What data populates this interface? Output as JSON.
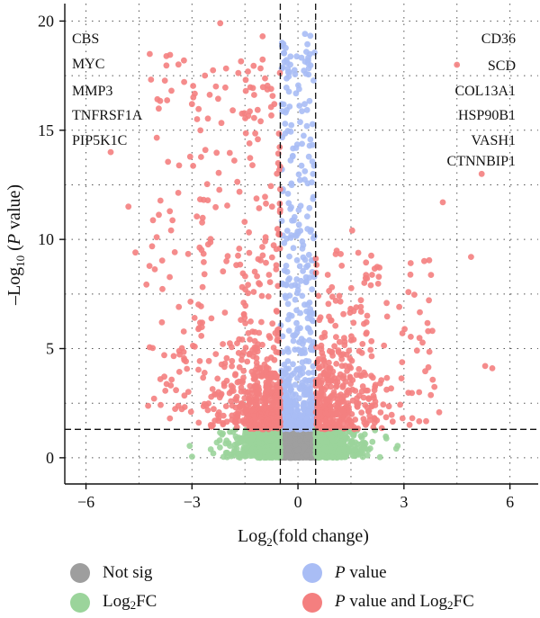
{
  "chart_data": {
    "type": "scatter",
    "title": "",
    "xlabel_main": "Log",
    "xlabel_sub": "2",
    "xlabel_rest": "(fold change)",
    "ylabel_pre": "–Log",
    "ylabel_sub": "10",
    "ylabel_open": " (",
    "ylabel_italic": "P",
    "ylabel_rest": " value)",
    "xlim": [
      -6.6,
      6.8
    ],
    "ylim": [
      -1.2,
      20.8
    ],
    "xticks": [
      -6,
      -3,
      0,
      3,
      6
    ],
    "xtick_labels": [
      "−6",
      "−3",
      "0",
      "3",
      "6"
    ],
    "yticks": [
      0,
      5,
      10,
      15,
      20
    ],
    "ytick_labels": [
      "0",
      "5",
      "10",
      "15",
      "20"
    ],
    "grid": "dotted",
    "fc_threshold": [
      -0.5,
      0.5
    ],
    "p_threshold_neglog10": 1.3,
    "legend_position": "bottom",
    "series": [
      {
        "name_text": "Not sig",
        "color": "#9e9e9e"
      },
      {
        "name_italic": "P",
        "name_rest": " value",
        "color": "#a9bdf5"
      },
      {
        "name_pre": "Log",
        "name_sub": "2",
        "name_post": "FC",
        "color": "#9bd49b"
      },
      {
        "name_italic": "P",
        "name_rest": " value and Log",
        "name_sub": "2",
        "name_post": "FC",
        "color": "#f47f7f"
      }
    ],
    "gene_labels_left": [
      "CBS",
      "MYC",
      "MMP3",
      "TNFRSF1A",
      "PIP5K1C"
    ],
    "gene_labels_right": [
      "CD36",
      "SCD",
      "COL13A1",
      "HSP90B1",
      "VASH1",
      "CTNNBIP1"
    ],
    "highlighted_points": [
      {
        "x": -5.3,
        "y": 14.0,
        "series": 3
      },
      {
        "x": -2.2,
        "y": 19.9,
        "series": 3
      },
      {
        "x": -1.0,
        "y": 19.3,
        "series": 3
      },
      {
        "x": -3.0,
        "y": 16.2,
        "series": 3
      },
      {
        "x": 4.5,
        "y": 18.0,
        "series": 3
      },
      {
        "x": 5.2,
        "y": 13.0,
        "series": 3
      },
      {
        "x": 4.1,
        "y": 11.7,
        "series": 3
      },
      {
        "x": 4.9,
        "y": 9.2,
        "series": 3
      },
      {
        "x": 5.5,
        "y": 4.1,
        "series": 3
      },
      {
        "x": 5.3,
        "y": 4.2,
        "series": 3
      },
      {
        "x": -4.6,
        "y": 9.4,
        "series": 3
      },
      {
        "x": -4.0,
        "y": 10.1,
        "series": 3
      },
      {
        "x": -4.8,
        "y": 11.5,
        "series": 3
      }
    ]
  }
}
